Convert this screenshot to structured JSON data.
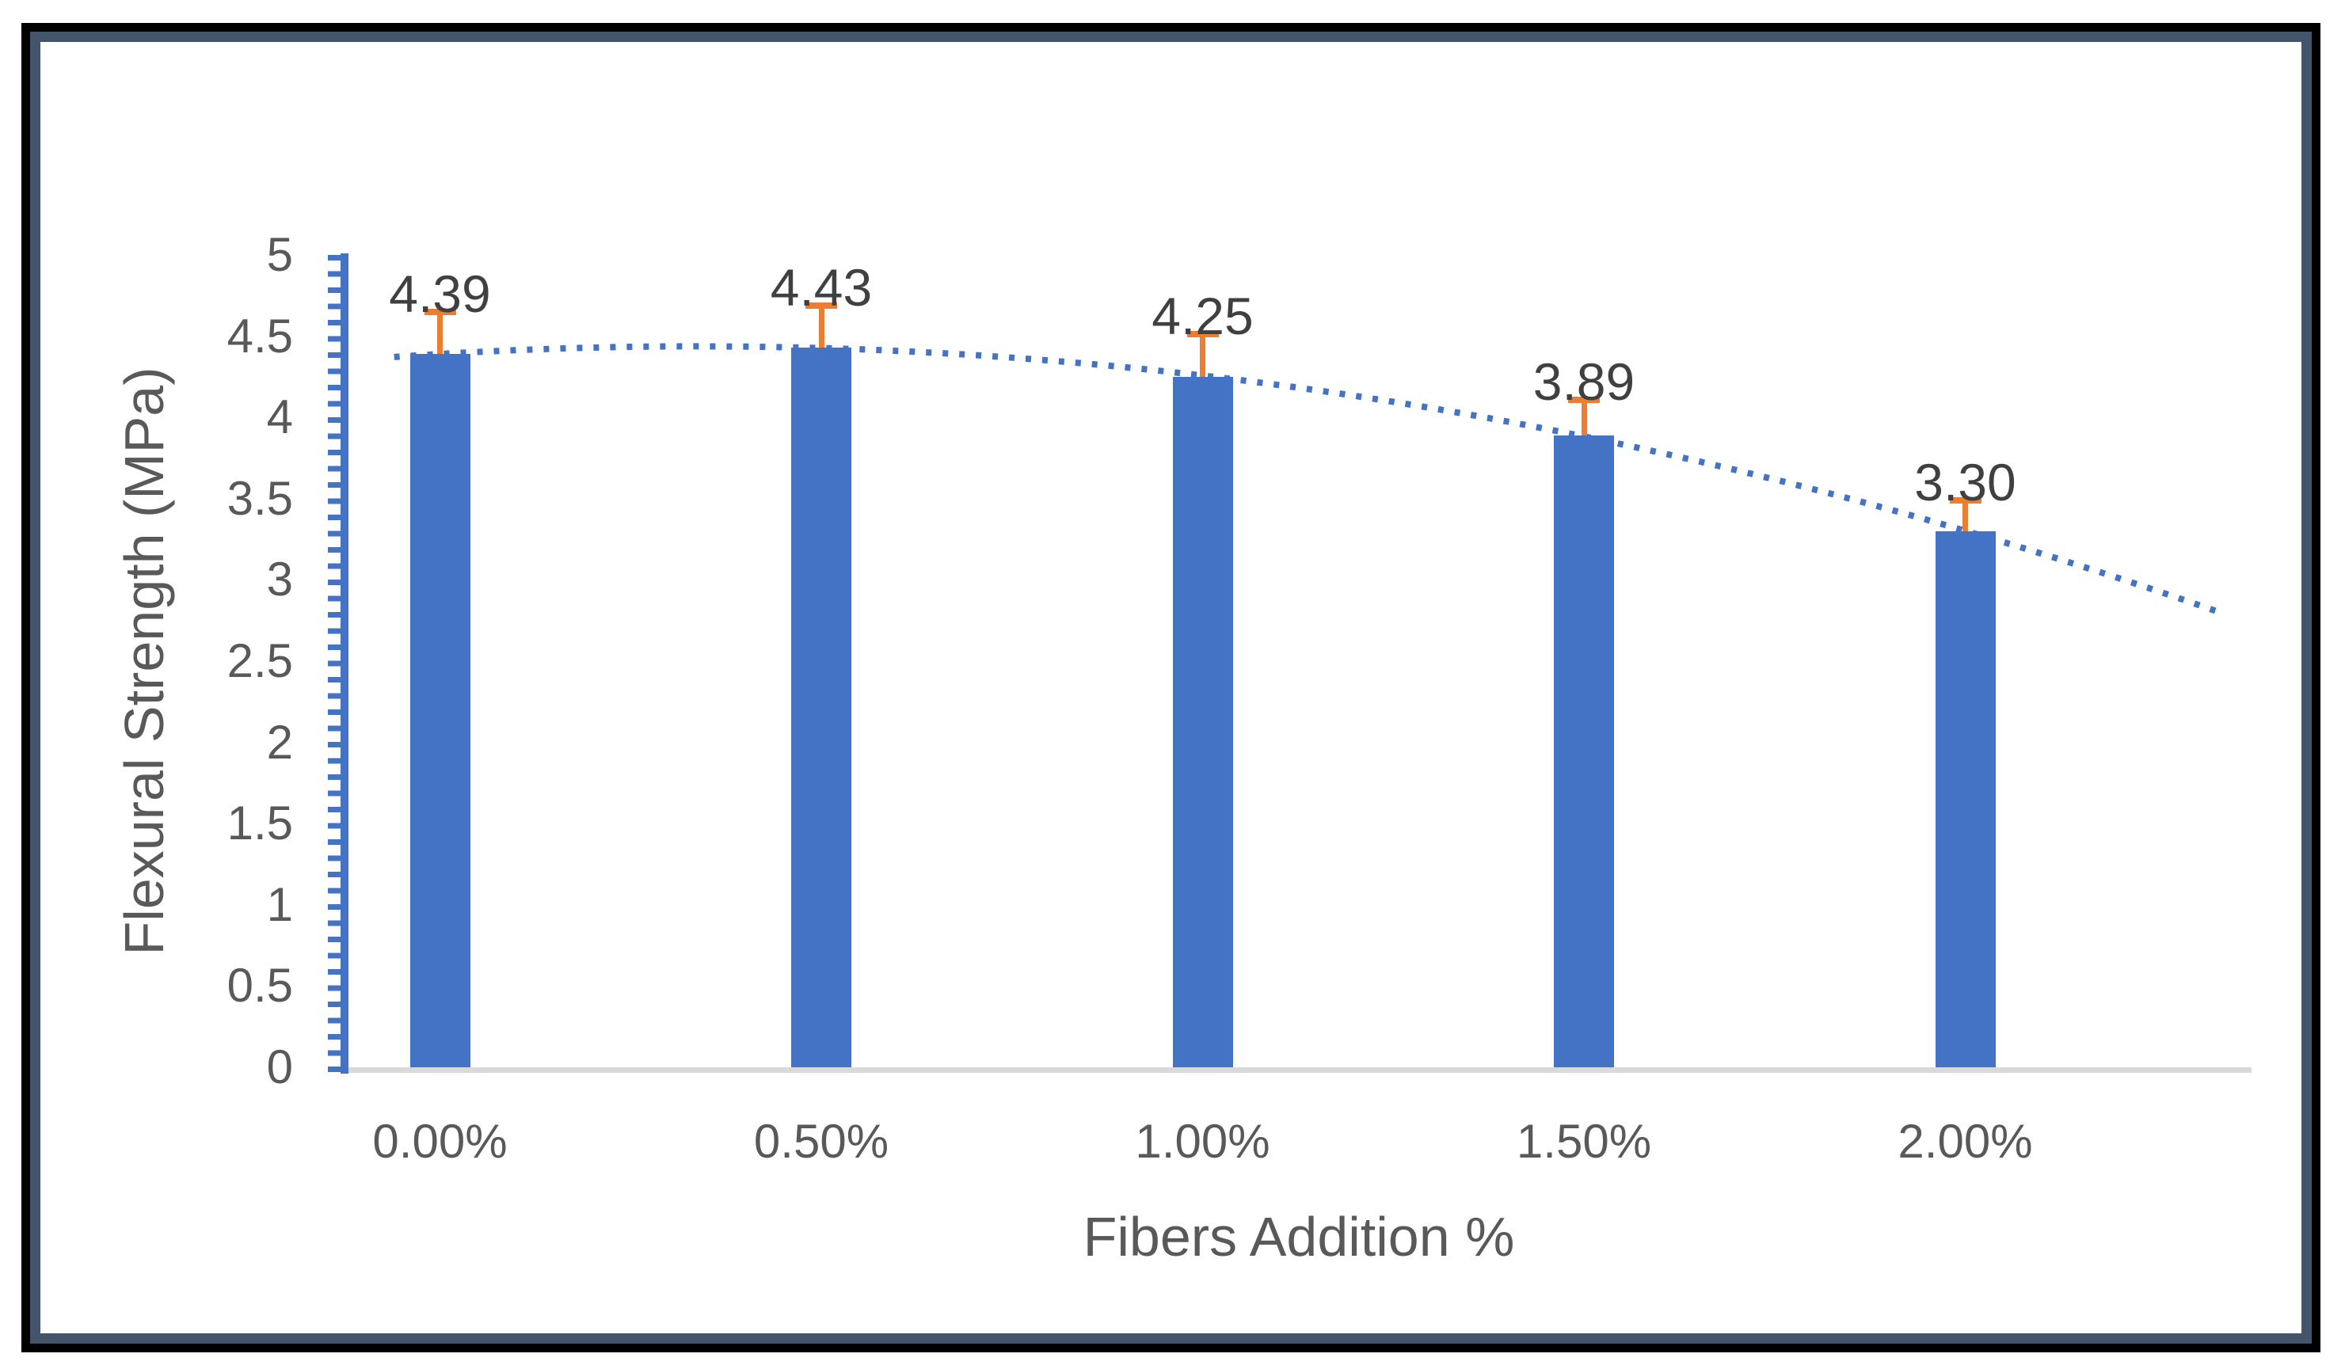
{
  "chart_data": {
    "type": "bar",
    "title": "",
    "categories": [
      "0.00%",
      "0.50%",
      "1.00%",
      "1.50%",
      "2.00%"
    ],
    "values": [
      4.39,
      4.43,
      4.25,
      3.89,
      3.3
    ],
    "value_labels": [
      "4.39",
      "4.43",
      "4.25",
      "3.89",
      "3.30"
    ],
    "error_up": [
      0.28,
      0.28,
      0.28,
      0.24,
      0.21
    ],
    "xlabel": "Fibers Addition %",
    "ylabel": "Flexural Strength (MPa)",
    "ylim": [
      0,
      5
    ],
    "ytick_step": 0.5,
    "ytick_labels_top_to_bottom": [
      "5",
      "4.5",
      "4",
      "3.5",
      "3",
      "2.5",
      "2",
      "1.5",
      "1",
      "0.5",
      "0"
    ],
    "y_minor_tick_step": 0.1,
    "grid": "off",
    "legend": "none",
    "trendline": {
      "style": "dotted",
      "shape": "polynomial-degree-2",
      "fit_through_values": [
        4.39,
        4.43,
        4.25,
        3.89,
        3.3
      ],
      "extends_right_categories": 0.7
    },
    "colors": {
      "bar": "#4472C4",
      "error_bar": "#ED7D31",
      "trendline": "#4472C4",
      "y_axis_line": "#4472C4",
      "x_axis_line": "#D9D9D9",
      "tick_label": "#595959",
      "axis_title": "#595959",
      "value_label": "#404040",
      "frame_outer": "#000000",
      "frame_inner": "#44546A"
    }
  }
}
